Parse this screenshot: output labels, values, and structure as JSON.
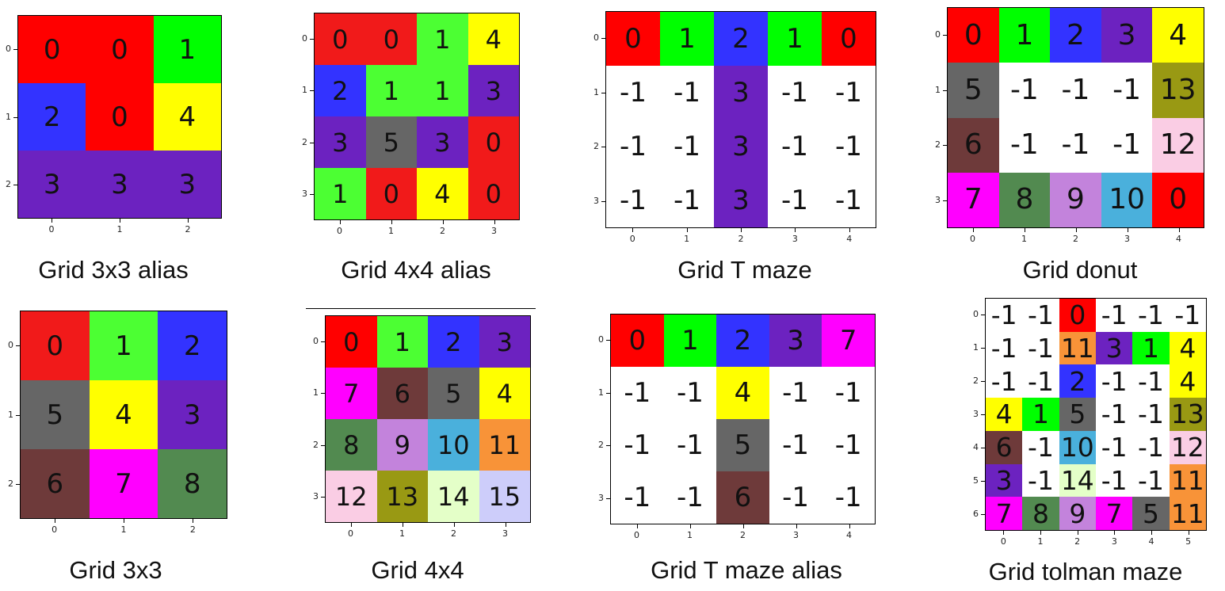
{
  "colors": {
    "R": "#ff0000",
    "Rb": "#f11a1a",
    "G": "#00ff00",
    "Gb": "#4cff33",
    "B": "#3333ff",
    "Y": "#ffff00",
    "P": "#6c22c0",
    "K": "#666666",
    "M": "#ff00ff",
    "D": "#6e3a3a",
    "F": "#528a50",
    "L": "#c383dc",
    "C": "#4ab0dc",
    "O": "#f89338",
    "N": "#999913",
    "I": "#facde4",
    "E": "#e4ffc8",
    "V": "#cdcdfa",
    "W": "#ffffff"
  },
  "grids": [
    {
      "caption": "Grid 3x3 alias",
      "rows": 3,
      "cols": 3,
      "values": [
        [
          "0",
          "0",
          "1"
        ],
        [
          "2",
          "0",
          "4"
        ],
        [
          "3",
          "3",
          "3"
        ]
      ],
      "colors": [
        [
          "R",
          "R",
          "G"
        ],
        [
          "B",
          "R",
          "Y"
        ],
        [
          "P",
          "P",
          "P"
        ]
      ],
      "yticks": [
        "0",
        "1",
        "2"
      ],
      "xticks": [
        "0",
        "1",
        "2"
      ]
    },
    {
      "caption": "Grid 4x4 alias",
      "rows": 4,
      "cols": 4,
      "values": [
        [
          "0",
          "0",
          "1",
          "4"
        ],
        [
          "2",
          "1",
          "1",
          "3"
        ],
        [
          "3",
          "5",
          "3",
          "0"
        ],
        [
          "1",
          "0",
          "4",
          "0"
        ]
      ],
      "colors": [
        [
          "Rb",
          "Rb",
          "Gb",
          "Y"
        ],
        [
          "B",
          "Gb",
          "Gb",
          "P"
        ],
        [
          "P",
          "K",
          "P",
          "Rb"
        ],
        [
          "Gb",
          "Rb",
          "Y",
          "Rb"
        ]
      ],
      "yticks": [
        "0",
        "1",
        "2",
        "3"
      ],
      "xticks": [
        "0",
        "1",
        "2",
        "3"
      ]
    },
    {
      "caption": "Grid T maze",
      "rows": 4,
      "cols": 5,
      "values": [
        [
          "0",
          "1",
          "2",
          "1",
          "0"
        ],
        [
          "-1",
          "-1",
          "3",
          "-1",
          "-1"
        ],
        [
          "-1",
          "-1",
          "3",
          "-1",
          "-1"
        ],
        [
          "-1",
          "-1",
          "3",
          "-1",
          "-1"
        ]
      ],
      "colors": [
        [
          "R",
          "G",
          "B",
          "G",
          "R"
        ],
        [
          "W",
          "W",
          "P",
          "W",
          "W"
        ],
        [
          "W",
          "W",
          "P",
          "W",
          "W"
        ],
        [
          "W",
          "W",
          "P",
          "W",
          "W"
        ]
      ],
      "yticks": [
        "0",
        "1",
        "2",
        "3"
      ],
      "xticks": [
        "0",
        "1",
        "2",
        "3",
        "4"
      ]
    },
    {
      "caption": "Grid donut",
      "rows": 4,
      "cols": 5,
      "values": [
        [
          "0",
          "1",
          "2",
          "3",
          "4"
        ],
        [
          "5",
          "-1",
          "-1",
          "-1",
          "13"
        ],
        [
          "6",
          "-1",
          "-1",
          "-1",
          "12"
        ],
        [
          "7",
          "8",
          "9",
          "10",
          "0"
        ]
      ],
      "colors": [
        [
          "R",
          "G",
          "B",
          "P",
          "Y"
        ],
        [
          "K",
          "W",
          "W",
          "W",
          "N"
        ],
        [
          "D",
          "W",
          "W",
          "W",
          "I"
        ],
        [
          "M",
          "F",
          "L",
          "C",
          "R"
        ]
      ],
      "yticks": [
        "0",
        "1",
        "2",
        "3"
      ],
      "xticks": [
        "0",
        "1",
        "2",
        "3",
        "4"
      ]
    },
    {
      "caption": "Grid 3x3",
      "rows": 3,
      "cols": 3,
      "values": [
        [
          "0",
          "1",
          "2"
        ],
        [
          "5",
          "4",
          "3"
        ],
        [
          "6",
          "7",
          "8"
        ]
      ],
      "colors": [
        [
          "Rb",
          "Gb",
          "B"
        ],
        [
          "K",
          "Y",
          "P"
        ],
        [
          "D",
          "M",
          "F"
        ]
      ],
      "yticks": [
        "0",
        "1",
        "2"
      ],
      "xticks": [
        "0",
        "1",
        "2"
      ]
    },
    {
      "caption": "Grid 4x4",
      "rows": 4,
      "cols": 4,
      "values": [
        [
          "0",
          "1",
          "2",
          "3"
        ],
        [
          "7",
          "6",
          "5",
          "4"
        ],
        [
          "8",
          "9",
          "10",
          "11"
        ],
        [
          "12",
          "13",
          "14",
          "15"
        ]
      ],
      "colors": [
        [
          "R",
          "Gb",
          "B",
          "P"
        ],
        [
          "M",
          "D",
          "K",
          "Y"
        ],
        [
          "F",
          "L",
          "C",
          "O"
        ],
        [
          "I",
          "N",
          "E",
          "V"
        ]
      ],
      "yticks": [
        "0",
        "1",
        "2",
        "3"
      ],
      "xticks": [
        "0",
        "1",
        "2",
        "3"
      ]
    },
    {
      "caption": "Grid T maze alias",
      "rows": 4,
      "cols": 5,
      "values": [
        [
          "0",
          "1",
          "2",
          "3",
          "7"
        ],
        [
          "-1",
          "-1",
          "4",
          "-1",
          "-1"
        ],
        [
          "-1",
          "-1",
          "5",
          "-1",
          "-1"
        ],
        [
          "-1",
          "-1",
          "6",
          "-1",
          "-1"
        ]
      ],
      "colors": [
        [
          "R",
          "G",
          "B",
          "P",
          "M"
        ],
        [
          "W",
          "W",
          "Y",
          "W",
          "W"
        ],
        [
          "W",
          "W",
          "K",
          "W",
          "W"
        ],
        [
          "W",
          "W",
          "D",
          "W",
          "W"
        ]
      ],
      "yticks": [
        "0",
        "1",
        "2",
        "3"
      ],
      "xticks": [
        "0",
        "1",
        "2",
        "3",
        "4"
      ]
    },
    {
      "caption": "Grid tolman maze",
      "rows": 7,
      "cols": 6,
      "values": [
        [
          "-1",
          "-1",
          "0",
          "-1",
          "-1",
          "-1"
        ],
        [
          "-1",
          "-1",
          "11",
          "3",
          "1",
          "4"
        ],
        [
          "-1",
          "-1",
          "2",
          "-1",
          "-1",
          "4"
        ],
        [
          "4",
          "1",
          "5",
          "-1",
          "-1",
          "13"
        ],
        [
          "6",
          "-1",
          "10",
          "-1",
          "-1",
          "12"
        ],
        [
          "3",
          "-1",
          "14",
          "-1",
          "-1",
          "11"
        ],
        [
          "7",
          "8",
          "9",
          "7",
          "5",
          "11"
        ]
      ],
      "colors": [
        [
          "W",
          "W",
          "R",
          "W",
          "W",
          "W"
        ],
        [
          "W",
          "W",
          "O",
          "P",
          "G",
          "Y"
        ],
        [
          "W",
          "W",
          "B",
          "W",
          "W",
          "Y"
        ],
        [
          "Y",
          "G",
          "K",
          "W",
          "W",
          "N"
        ],
        [
          "D",
          "W",
          "C",
          "W",
          "W",
          "I"
        ],
        [
          "P",
          "W",
          "E",
          "W",
          "W",
          "O"
        ],
        [
          "M",
          "F",
          "L",
          "M",
          "K",
          "O"
        ]
      ],
      "yticks": [
        "0",
        "1",
        "2",
        "3",
        "4",
        "5",
        "6"
      ],
      "xticks": [
        "0",
        "1",
        "2",
        "3",
        "4",
        "5"
      ]
    }
  ]
}
